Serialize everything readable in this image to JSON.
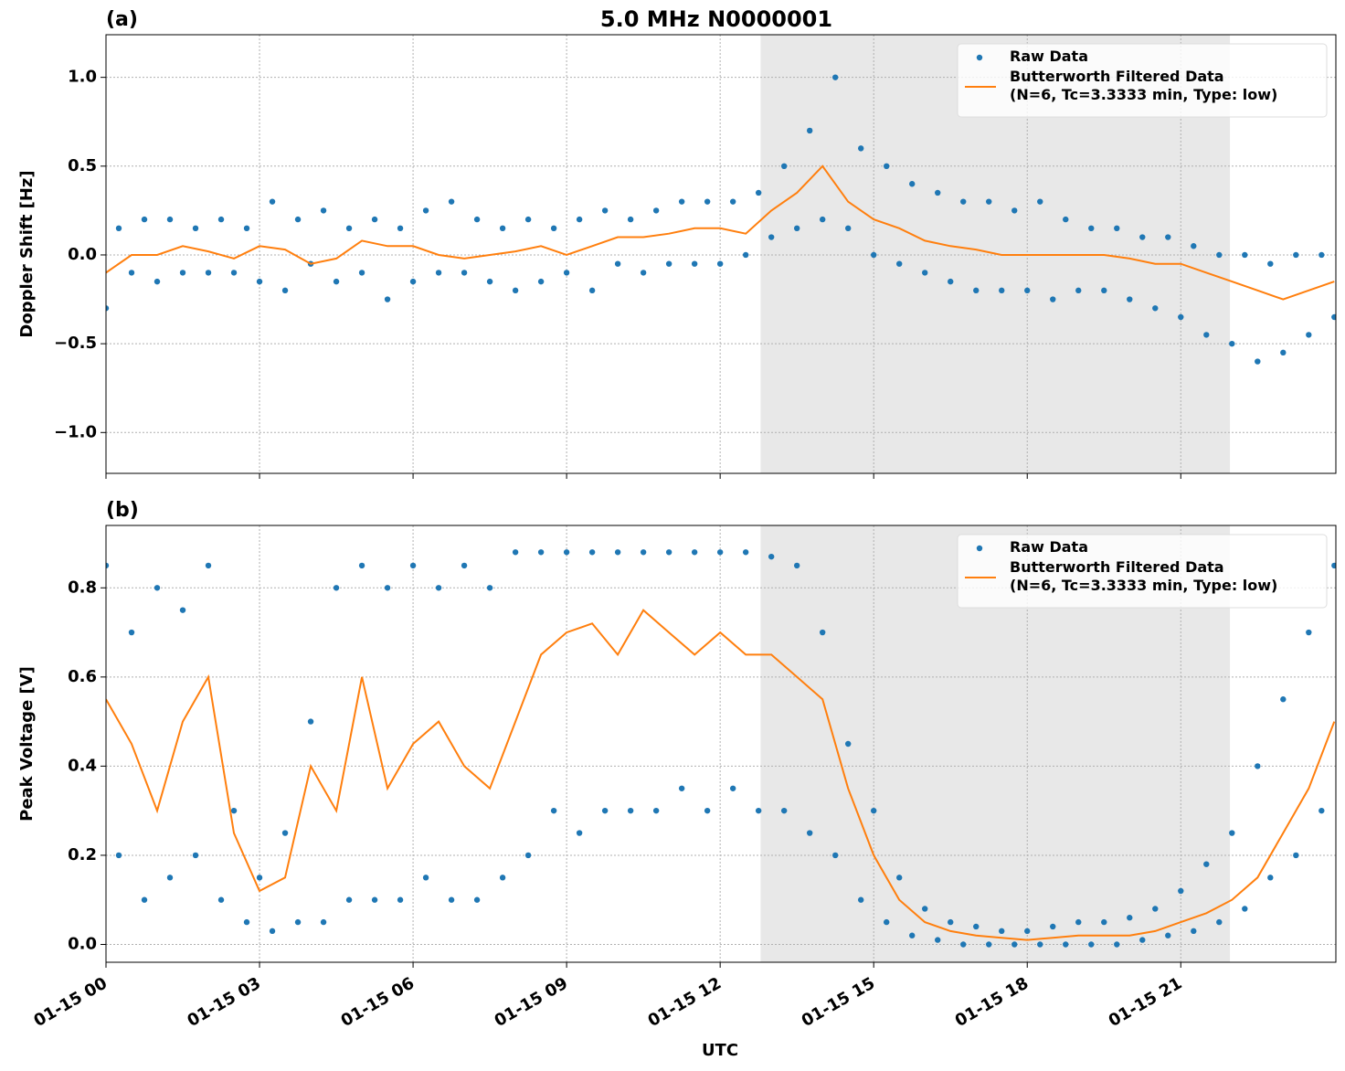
{
  "chart_data": [
    {
      "type": "line",
      "panel_label": "(a)",
      "title": "5.0 MHz N0000001",
      "ylabel": "Doppler Shift [Hz]",
      "xlim": [
        0,
        24.03
      ],
      "ylim": [
        -1.23,
        1.24
      ],
      "xticks": [
        0,
        3,
        6,
        9,
        12,
        15,
        18,
        21
      ],
      "yticks": [
        {
          "value": -1.0,
          "label": "−1.0"
        },
        {
          "value": -0.5,
          "label": "−0.5"
        },
        {
          "value": 0.0,
          "label": "0.0"
        },
        {
          "value": 0.5,
          "label": "0.5"
        },
        {
          "value": 1.0,
          "label": "1.0"
        }
      ],
      "grid": true,
      "legend": "upper right",
      "shade": {
        "x": [
          12.79,
          21.96
        ],
        "color": "#e8e8e8"
      },
      "series": [
        {
          "name": "Raw Data",
          "style": "markers",
          "color": "#1f77b4",
          "x": [
            0,
            0.25,
            0.5,
            0.75,
            1,
            1.25,
            1.5,
            1.75,
            2,
            2.25,
            2.5,
            2.75,
            3,
            3.25,
            3.5,
            3.75,
            4,
            4.25,
            4.5,
            4.75,
            5,
            5.25,
            5.5,
            5.75,
            6,
            6.25,
            6.5,
            6.75,
            7,
            7.25,
            7.5,
            7.75,
            8,
            8.25,
            8.5,
            8.75,
            9,
            9.25,
            9.5,
            9.75,
            10,
            10.25,
            10.5,
            10.75,
            11,
            11.25,
            11.5,
            11.75,
            12,
            12.25,
            12.5,
            12.75,
            13,
            13.25,
            13.5,
            13.75,
            14,
            14.25,
            14.5,
            14.75,
            15,
            15.25,
            15.5,
            15.75,
            16,
            16.25,
            16.5,
            16.75,
            17,
            17.25,
            17.5,
            17.75,
            18,
            18.25,
            18.5,
            18.75,
            19,
            19.25,
            19.5,
            19.75,
            20,
            20.25,
            20.5,
            20.75,
            21,
            21.25,
            21.5,
            21.75,
            22,
            22.25,
            22.5,
            22.75,
            23,
            23.25,
            23.5,
            23.75,
            24
          ],
          "values": [
            -0.3,
            0.15,
            -0.1,
            0.2,
            -0.15,
            0.2,
            -0.1,
            0.15,
            -0.1,
            0.2,
            -0.1,
            0.15,
            -0.15,
            0.3,
            -0.2,
            0.2,
            -0.05,
            0.25,
            -0.15,
            0.15,
            -0.1,
            0.2,
            -0.25,
            0.15,
            -0.15,
            0.25,
            -0.1,
            0.3,
            -0.1,
            0.2,
            -0.15,
            0.15,
            -0.2,
            0.2,
            -0.15,
            0.15,
            -0.1,
            0.2,
            -0.2,
            0.25,
            -0.05,
            0.2,
            -0.1,
            0.25,
            -0.05,
            0.3,
            -0.05,
            0.3,
            -0.05,
            0.3,
            0.0,
            0.35,
            0.1,
            0.5,
            0.15,
            0.7,
            0.2,
            1.0,
            0.15,
            0.6,
            0.0,
            0.5,
            -0.05,
            0.4,
            -0.1,
            0.35,
            -0.15,
            0.3,
            -0.2,
            0.3,
            -0.2,
            0.25,
            -0.2,
            0.3,
            -0.25,
            0.2,
            -0.2,
            0.15,
            -0.2,
            0.15,
            -0.25,
            0.1,
            -0.3,
            0.1,
            -0.35,
            0.05,
            -0.45,
            0.0,
            -0.5,
            0.0,
            -0.6,
            -0.05,
            -0.55,
            0.0,
            -0.45,
            0.0,
            -0.35
          ]
        },
        {
          "name": "Butterworth Filtered Data\n(N=6, Tc=3.3333 min, Type: low)",
          "style": "line",
          "color": "#ff7f0e",
          "x": [
            0,
            0.5,
            1,
            1.5,
            2,
            2.5,
            3,
            3.5,
            4,
            4.5,
            5,
            5.5,
            6,
            6.5,
            7,
            7.5,
            8,
            8.5,
            9,
            9.5,
            10,
            10.5,
            11,
            11.5,
            12,
            12.5,
            13,
            13.5,
            14,
            14.5,
            15,
            15.5,
            16,
            16.5,
            17,
            17.5,
            18,
            18.5,
            19,
            19.5,
            20,
            20.5,
            21,
            21.5,
            22,
            22.5,
            23,
            23.5,
            24
          ],
          "values": [
            -0.1,
            0.0,
            0.0,
            0.05,
            0.02,
            -0.02,
            0.05,
            0.03,
            -0.05,
            -0.02,
            0.08,
            0.05,
            0.05,
            0.0,
            -0.02,
            0.0,
            0.02,
            0.05,
            0.0,
            0.05,
            0.1,
            0.1,
            0.12,
            0.15,
            0.15,
            0.12,
            0.25,
            0.35,
            0.5,
            0.3,
            0.2,
            0.15,
            0.08,
            0.05,
            0.03,
            0.0,
            0.0,
            0.0,
            0.0,
            0.0,
            -0.02,
            -0.05,
            -0.05,
            -0.1,
            -0.15,
            -0.2,
            -0.25,
            -0.2,
            -0.15
          ]
        }
      ]
    },
    {
      "type": "line",
      "panel_label": "(b)",
      "ylabel": "Peak Voltage [V]",
      "xlabel": "UTC",
      "xlim": [
        0,
        24.03
      ],
      "ylim": [
        -0.04,
        0.94
      ],
      "xticks": [
        {
          "value": 0,
          "label": "01-15 00"
        },
        {
          "value": 3,
          "label": "01-15 03"
        },
        {
          "value": 6,
          "label": "01-15 06"
        },
        {
          "value": 9,
          "label": "01-15 09"
        },
        {
          "value": 12,
          "label": "01-15 12"
        },
        {
          "value": 15,
          "label": "01-15 15"
        },
        {
          "value": 18,
          "label": "01-15 18"
        },
        {
          "value": 21,
          "label": "01-15 21"
        }
      ],
      "yticks": [
        {
          "value": 0.0,
          "label": "0.0"
        },
        {
          "value": 0.2,
          "label": "0.2"
        },
        {
          "value": 0.4,
          "label": "0.4"
        },
        {
          "value": 0.6,
          "label": "0.6"
        },
        {
          "value": 0.8,
          "label": "0.8"
        }
      ],
      "grid": true,
      "legend": "upper right",
      "shade": {
        "x": [
          12.79,
          21.96
        ],
        "color": "#e8e8e8"
      },
      "series": [
        {
          "name": "Raw Data",
          "style": "markers",
          "color": "#1f77b4",
          "x": [
            0,
            0.25,
            0.5,
            0.75,
            1,
            1.25,
            1.5,
            1.75,
            2,
            2.25,
            2.5,
            2.75,
            3,
            3.25,
            3.5,
            3.75,
            4,
            4.25,
            4.5,
            4.75,
            5,
            5.25,
            5.5,
            5.75,
            6,
            6.25,
            6.5,
            6.75,
            7,
            7.25,
            7.5,
            7.75,
            8,
            8.25,
            8.5,
            8.75,
            9,
            9.25,
            9.5,
            9.75,
            10,
            10.25,
            10.5,
            10.75,
            11,
            11.25,
            11.5,
            11.75,
            12,
            12.25,
            12.5,
            12.75,
            13,
            13.25,
            13.5,
            13.75,
            14,
            14.25,
            14.5,
            14.75,
            15,
            15.25,
            15.5,
            15.75,
            16,
            16.25,
            16.5,
            16.75,
            17,
            17.25,
            17.5,
            17.75,
            18,
            18.25,
            18.5,
            18.75,
            19,
            19.25,
            19.5,
            19.75,
            20,
            20.25,
            20.5,
            20.75,
            21,
            21.25,
            21.5,
            21.75,
            22,
            22.25,
            22.5,
            22.75,
            23,
            23.25,
            23.5,
            23.75,
            24
          ],
          "values": [
            0.85,
            0.2,
            0.7,
            0.1,
            0.8,
            0.15,
            0.75,
            0.2,
            0.85,
            0.1,
            0.3,
            0.05,
            0.15,
            0.03,
            0.25,
            0.05,
            0.5,
            0.05,
            0.8,
            0.1,
            0.85,
            0.1,
            0.8,
            0.1,
            0.85,
            0.15,
            0.8,
            0.1,
            0.85,
            0.1,
            0.8,
            0.15,
            0.88,
            0.2,
            0.88,
            0.3,
            0.88,
            0.25,
            0.88,
            0.3,
            0.88,
            0.3,
            0.88,
            0.3,
            0.88,
            0.35,
            0.88,
            0.3,
            0.88,
            0.35,
            0.88,
            0.3,
            0.87,
            0.3,
            0.85,
            0.25,
            0.7,
            0.2,
            0.45,
            0.1,
            0.3,
            0.05,
            0.15,
            0.02,
            0.08,
            0.01,
            0.05,
            0.0,
            0.04,
            0.0,
            0.03,
            0.0,
            0.03,
            0.0,
            0.04,
            0.0,
            0.05,
            0.0,
            0.05,
            0.0,
            0.06,
            0.01,
            0.08,
            0.02,
            0.12,
            0.03,
            0.18,
            0.05,
            0.25,
            0.08,
            0.4,
            0.15,
            0.55,
            0.2,
            0.7,
            0.3,
            0.85
          ]
        },
        {
          "name": "Butterworth Filtered Data\n(N=6, Tc=3.3333 min, Type: low)",
          "style": "line",
          "color": "#ff7f0e",
          "x": [
            0,
            0.5,
            1,
            1.5,
            2,
            2.5,
            3,
            3.5,
            4,
            4.5,
            5,
            5.5,
            6,
            6.5,
            7,
            7.5,
            8,
            8.5,
            9,
            9.5,
            10,
            10.5,
            11,
            11.5,
            12,
            12.5,
            13,
            13.5,
            14,
            14.5,
            15,
            15.5,
            16,
            16.5,
            17,
            17.5,
            18,
            18.5,
            19,
            19.5,
            20,
            20.5,
            21,
            21.5,
            22,
            22.5,
            23,
            23.5,
            24
          ],
          "values": [
            0.55,
            0.45,
            0.3,
            0.5,
            0.6,
            0.25,
            0.12,
            0.15,
            0.4,
            0.3,
            0.6,
            0.35,
            0.45,
            0.5,
            0.4,
            0.35,
            0.5,
            0.65,
            0.7,
            0.72,
            0.65,
            0.75,
            0.7,
            0.65,
            0.7,
            0.65,
            0.65,
            0.6,
            0.55,
            0.35,
            0.2,
            0.1,
            0.05,
            0.03,
            0.02,
            0.015,
            0.01,
            0.015,
            0.02,
            0.02,
            0.02,
            0.03,
            0.05,
            0.07,
            0.1,
            0.15,
            0.25,
            0.35,
            0.5
          ]
        }
      ]
    }
  ]
}
